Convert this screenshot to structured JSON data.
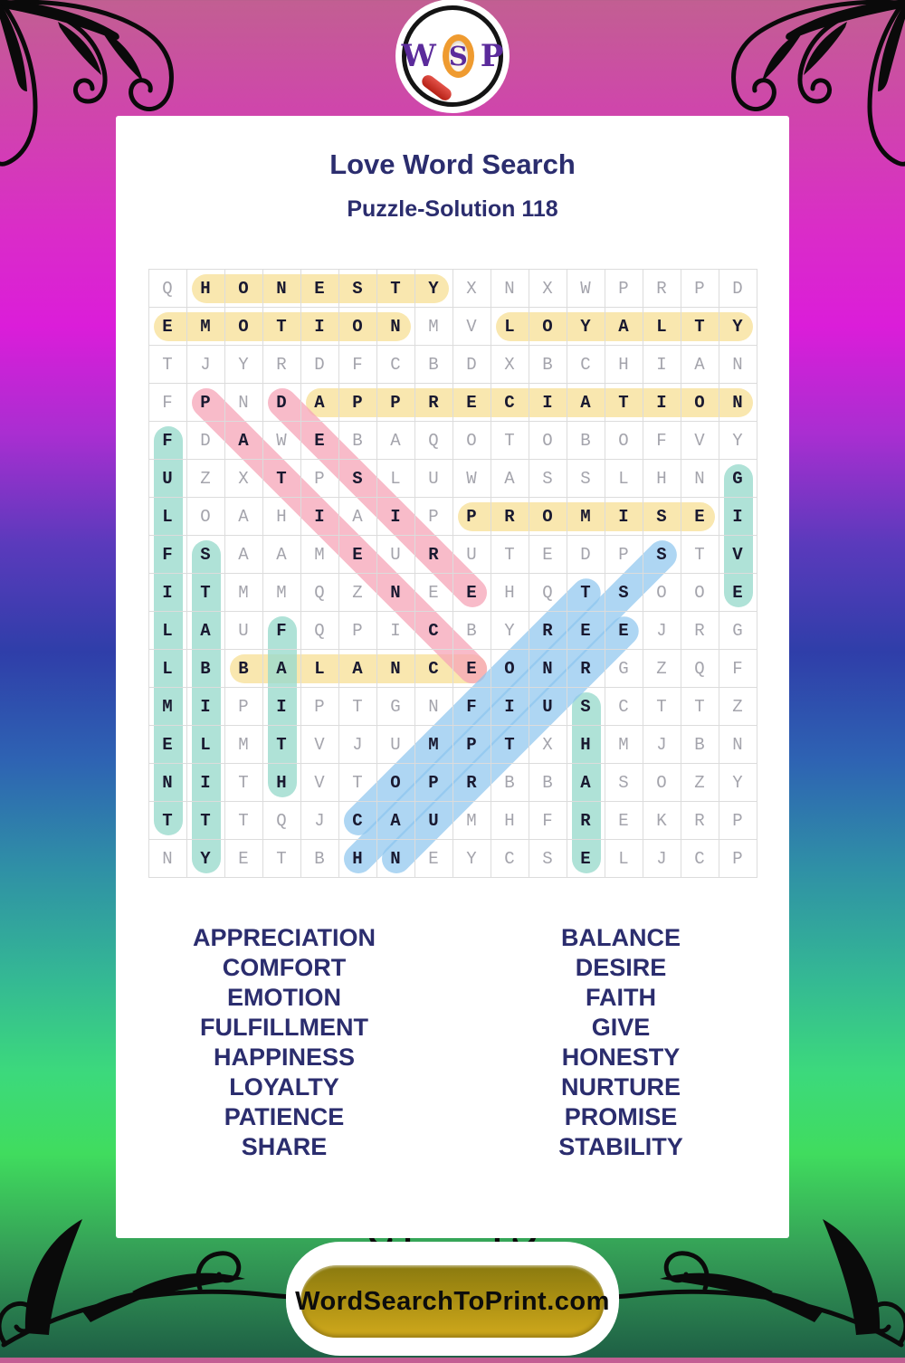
{
  "logo": {
    "w": "W",
    "s": "S",
    "p": "P"
  },
  "header": {
    "title": "Love Word Search",
    "subtitle": "Puzzle-Solution 118"
  },
  "grid": {
    "rows": [
      "QHONESTYXNXWPRPD",
      "EMOTIONMVLOYALTY",
      "TJYRDFCBDXBCHIAN",
      "FPNDAPPRECIATION",
      "FDAWEBAQOTOBOFVY",
      "UZXTPSLUWASSLHNG",
      "LOAHIAIPPROMISEI",
      "FSAAMEURUTEDPSTV",
      "ITMMQZNEEHQTSOOE",
      "LAUFQPICBYREEJRG",
      "LBBALANCEONRGZQF",
      "MIPIPTGNFIUSCTTZ",
      "ELMTVJUMPTXHMJBN",
      "NITHVTOPRBBASOZY",
      "TTTQJCAUMHFREKRP",
      "NYETBHNEYCSELJCP"
    ]
  },
  "placements": [
    {
      "word": "HONESTY",
      "dir": "H",
      "row": 0,
      "col": 1,
      "len": 7,
      "color": "yellow"
    },
    {
      "word": "EMOTION",
      "dir": "H",
      "row": 1,
      "col": 0,
      "len": 7,
      "color": "yellow"
    },
    {
      "word": "LOYALTY",
      "dir": "H",
      "row": 1,
      "col": 9,
      "len": 7,
      "color": "yellow"
    },
    {
      "word": "APPRECIATION",
      "dir": "H",
      "row": 3,
      "col": 4,
      "len": 12,
      "color": "yellow"
    },
    {
      "word": "PROMISE",
      "dir": "H",
      "row": 6,
      "col": 8,
      "len": 7,
      "color": "yellow"
    },
    {
      "word": "BALANCE",
      "dir": "H",
      "row": 10,
      "col": 2,
      "len": 7,
      "color": "yellow"
    },
    {
      "word": "FULFILLMENT",
      "dir": "V",
      "row": 4,
      "col": 0,
      "len": 11,
      "color": "teal"
    },
    {
      "word": "STABILITY",
      "dir": "V",
      "row": 7,
      "col": 1,
      "len": 9,
      "color": "teal"
    },
    {
      "word": "FAITH",
      "dir": "V",
      "row": 9,
      "col": 3,
      "len": 5,
      "color": "teal"
    },
    {
      "word": "GIVE",
      "dir": "V",
      "row": 5,
      "col": 15,
      "len": 4,
      "color": "teal"
    },
    {
      "word": "SHARE",
      "dir": "V",
      "row": 11,
      "col": 11,
      "len": 5,
      "color": "teal"
    },
    {
      "word": "PATIENCE",
      "dir": "DD",
      "row": 3,
      "col": 1,
      "len": 8,
      "color": "pink"
    },
    {
      "word": "DESIRE",
      "dir": "DD",
      "row": 3,
      "col": 3,
      "len": 6,
      "color": "pink"
    },
    {
      "word": "COMFORT",
      "dir": "DU",
      "row": 14,
      "col": 5,
      "len": 7,
      "color": "blue"
    },
    {
      "word": "HAPPINESS",
      "dir": "DU",
      "row": 15,
      "col": 5,
      "len": 9,
      "color": "blue"
    },
    {
      "word": "NURTURE",
      "dir": "DU",
      "row": 15,
      "col": 6,
      "len": 7,
      "color": "blue"
    }
  ],
  "highlight_colors": {
    "yellow": "rgba(247, 222, 144, 0.72)",
    "teal": "rgba(155, 219, 205, 0.80)",
    "pink": "rgba(245, 164, 183, 0.75)",
    "blue": "rgba(140, 197, 238, 0.70)"
  },
  "word_list": {
    "left": [
      "APPRECIATION",
      "COMFORT",
      "EMOTION",
      "FULFILLMENT",
      "HAPPINESS",
      "LOYALTY",
      "PATIENCE",
      "SHARE"
    ],
    "right": [
      "BALANCE",
      "DESIRE",
      "FAITH",
      "GIVE",
      "HONESTY",
      "NURTURE",
      "PROMISE",
      "STABILITY"
    ]
  },
  "footer": {
    "site_label": "WordSearchToPrint.com"
  }
}
